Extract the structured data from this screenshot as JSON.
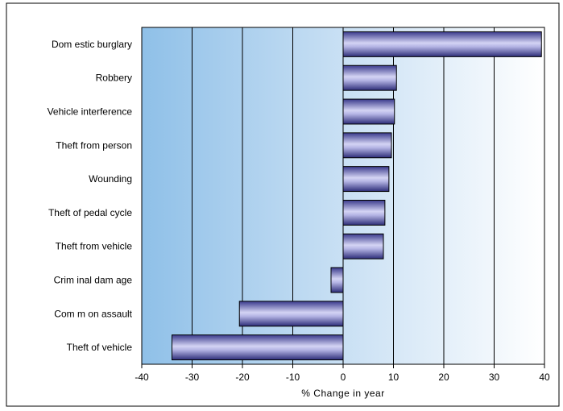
{
  "chart_data": {
    "type": "bar",
    "orientation": "horizontal",
    "categories": [
      "Dom estic burglary",
      "Robbery",
      "Vehicle interference",
      "Theft from person",
      "Wounding",
      "Theft of pedal cycle",
      "Theft from  vehicle",
      "Crim inal dam age",
      "Com m on assault",
      "Theft of vehicle"
    ],
    "values": [
      39.4,
      10.6,
      10.2,
      9.6,
      9.1,
      8.3,
      8.0,
      -2.4,
      -20.6,
      -34.0
    ],
    "xlabel": "% Change in year",
    "ylabel": "",
    "title": "",
    "xlim": [
      -40,
      40
    ],
    "x_ticks": [
      -40,
      -30,
      -20,
      -10,
      0,
      10,
      20,
      30,
      40
    ],
    "grid": true,
    "legend": "none",
    "colors": {
      "bar_dark": "#3a3a8c",
      "bar_light": "#c8c8f0",
      "plot_bg_left": "#8fc0e8",
      "plot_bg_right": "#ffffff",
      "gridline": "#000000"
    }
  }
}
